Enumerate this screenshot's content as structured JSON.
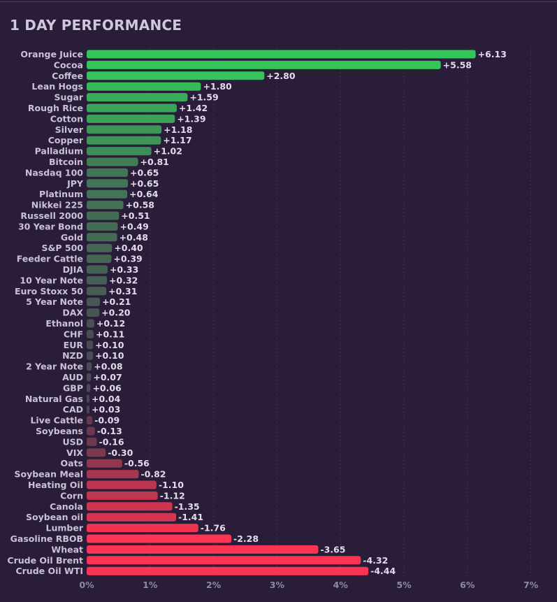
{
  "title": "1 DAY PERFORMANCE",
  "chart_data": {
    "type": "bar",
    "orientation": "horizontal",
    "title": "1 DAY PERFORMANCE",
    "xlabel": "",
    "ylabel": "",
    "xlim": [
      0,
      7
    ],
    "x_ticks": [
      "0%",
      "1%",
      "2%",
      "3%",
      "4%",
      "5%",
      "6%",
      "7%"
    ],
    "grid": "vertical dashed",
    "bar_length": "absolute value",
    "colors": {
      "positive_strong": "#35c45a",
      "positive_weak": "#4a4452",
      "negative_strong": "#ff3352",
      "negative_weak": "#5a3a4c"
    },
    "categories": [
      "Orange Juice",
      "Cocoa",
      "Coffee",
      "Lean Hogs",
      "Sugar",
      "Rough Rice",
      "Cotton",
      "Silver",
      "Copper",
      "Palladium",
      "Bitcoin",
      "Nasdaq 100",
      "JPY",
      "Platinum",
      "Nikkei 225",
      "Russell 2000",
      "30 Year Bond",
      "Gold",
      "S&P 500",
      "Feeder Cattle",
      "DJIA",
      "10 Year Note",
      "Euro Stoxx 50",
      "5 Year Note",
      "DAX",
      "Ethanol",
      "CHF",
      "EUR",
      "NZD",
      "2 Year Note",
      "AUD",
      "GBP",
      "Natural Gas",
      "CAD",
      "Live Cattle",
      "Soybeans",
      "USD",
      "VIX",
      "Oats",
      "Soybean Meal",
      "Heating Oil",
      "Corn",
      "Canola",
      "Soybean oil",
      "Lumber",
      "Gasoline RBOB",
      "Wheat",
      "Crude Oil Brent",
      "Crude Oil WTI"
    ],
    "values": [
      6.13,
      5.58,
      2.8,
      1.8,
      1.59,
      1.42,
      1.39,
      1.18,
      1.17,
      1.02,
      0.81,
      0.65,
      0.65,
      0.64,
      0.58,
      0.51,
      0.49,
      0.48,
      0.4,
      0.39,
      0.33,
      0.32,
      0.31,
      0.21,
      0.2,
      0.12,
      0.11,
      0.1,
      0.1,
      0.08,
      0.07,
      0.06,
      0.04,
      0.03,
      -0.09,
      -0.13,
      -0.16,
      -0.3,
      -0.56,
      -0.82,
      -1.1,
      -1.12,
      -1.35,
      -1.41,
      -1.76,
      -2.28,
      -3.65,
      -4.32,
      -4.44
    ],
    "value_labels": [
      "+6.13",
      "+5.58",
      "+2.80",
      "+1.80",
      "+1.59",
      "+1.42",
      "+1.39",
      "+1.18",
      "+1.17",
      "+1.02",
      "+0.81",
      "+0.65",
      "+0.65",
      "+0.64",
      "+0.58",
      "+0.51",
      "+0.49",
      "+0.48",
      "+0.40",
      "+0.39",
      "+0.33",
      "+0.32",
      "+0.31",
      "+0.21",
      "+0.20",
      "+0.12",
      "+0.11",
      "+0.10",
      "+0.10",
      "+0.08",
      "+0.07",
      "+0.06",
      "+0.04",
      "+0.03",
      "-0.09",
      "-0.13",
      "-0.16",
      "-0.30",
      "-0.56",
      "-0.82",
      "-1.10",
      "-1.12",
      "-1.35",
      "-1.41",
      "-1.76",
      "-2.28",
      "-3.65",
      "-4.32",
      "-4.44"
    ]
  }
}
